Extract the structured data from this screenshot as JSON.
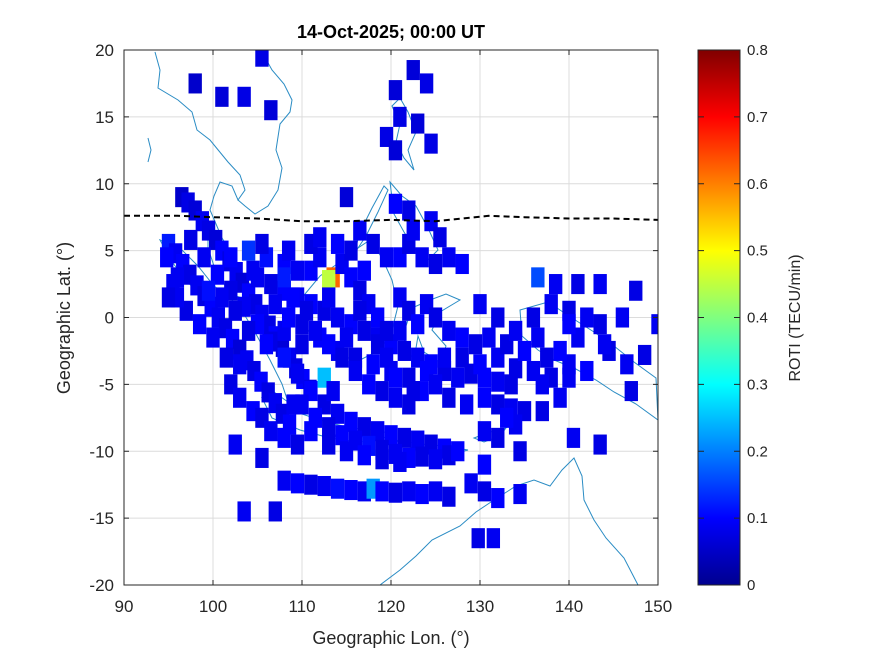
{
  "chart_data": {
    "type": "heatmap",
    "title": "14-Oct-2025; 00:00 UT",
    "xlabel": "Geographic Lon. (°)",
    "ylabel": "Geographic Lat. (°)",
    "xlim": [
      90,
      150
    ],
    "ylim": [
      -20,
      20
    ],
    "xticks": [
      "90",
      "100",
      "110",
      "120",
      "130",
      "140",
      "150"
    ],
    "yticks": [
      "20",
      "15",
      "10",
      "5",
      "0",
      "-5",
      "-10",
      "-15",
      "-20"
    ],
    "grid": true,
    "colorbar": {
      "label": "ROTI (TECU/min)",
      "range": [
        0,
        0.8
      ],
      "ticks": [
        "0.8",
        "0.7",
        "0.6",
        "0.5",
        "0.4",
        "0.3",
        "0.2",
        "0.1",
        "0"
      ],
      "colormap": "jet"
    },
    "colors": {
      "grid": "#dcdcdc",
      "coastline": "#2a8cc4",
      "equator_line": "#000000",
      "axes": "#262626"
    },
    "magnetic_equator": {
      "style": "dashed",
      "lon": [
        90,
        96,
        100,
        105,
        110,
        115,
        120,
        125,
        128,
        131,
        135,
        140,
        145,
        150
      ],
      "lat": [
        7.6,
        7.6,
        7.5,
        7.4,
        7.2,
        7.2,
        7.3,
        7.2,
        7.4,
        7.6,
        7.5,
        7.4,
        7.4,
        7.3
      ]
    },
    "roti_points": [
      [
        96.5,
        9.0,
        0.06
      ],
      [
        97.2,
        8.6,
        0.08
      ],
      [
        98.0,
        8.0,
        0.07
      ],
      [
        98.8,
        7.2,
        0.09
      ],
      [
        99.5,
        6.5,
        0.08
      ],
      [
        100.3,
        5.8,
        0.07
      ],
      [
        101.0,
        5.0,
        0.1
      ],
      [
        101.8,
        4.2,
        0.08
      ],
      [
        102.6,
        3.4,
        0.09
      ],
      [
        103.3,
        2.6,
        0.07
      ],
      [
        104.0,
        1.8,
        0.1
      ],
      [
        104.8,
        1.0,
        0.08
      ],
      [
        105.5,
        0.2,
        0.09
      ],
      [
        106.3,
        -0.6,
        0.08
      ],
      [
        107.0,
        -1.4,
        0.1
      ],
      [
        107.8,
        -2.2,
        0.07
      ],
      [
        108.6,
        -3.0,
        0.09
      ],
      [
        109.3,
        -3.8,
        0.08
      ],
      [
        110.1,
        -4.6,
        0.1
      ],
      [
        110.9,
        -5.4,
        0.08
      ],
      [
        95.0,
        5.5,
        0.12
      ],
      [
        95.8,
        4.8,
        0.09
      ],
      [
        96.6,
        4.0,
        0.1
      ],
      [
        97.4,
        3.2,
        0.08
      ],
      [
        98.2,
        2.4,
        0.09
      ],
      [
        99.0,
        1.6,
        0.08
      ],
      [
        99.8,
        0.8,
        0.1
      ],
      [
        100.6,
        0.0,
        0.09
      ],
      [
        101.4,
        -0.8,
        0.08
      ],
      [
        102.2,
        -1.6,
        0.1
      ],
      [
        103.0,
        -2.4,
        0.07
      ],
      [
        103.8,
        -3.2,
        0.09
      ],
      [
        104.6,
        -4.0,
        0.08
      ],
      [
        105.4,
        -4.8,
        0.1
      ],
      [
        106.2,
        -5.6,
        0.08
      ],
      [
        107.0,
        -6.4,
        0.09
      ],
      [
        107.8,
        -7.2,
        0.08
      ],
      [
        108.6,
        -8.0,
        0.1
      ],
      [
        97.5,
        5.8,
        0.08
      ],
      [
        99.0,
        4.5,
        0.09
      ],
      [
        100.5,
        3.2,
        0.1
      ],
      [
        102.0,
        2.0,
        0.08
      ],
      [
        103.5,
        0.8,
        0.09
      ],
      [
        105.0,
        -0.5,
        0.1
      ],
      [
        106.5,
        -1.8,
        0.08
      ],
      [
        108.0,
        -3.0,
        0.11
      ],
      [
        109.5,
        -4.2,
        0.09
      ],
      [
        111.0,
        -5.5,
        0.1
      ],
      [
        112.5,
        -6.5,
        0.08
      ],
      [
        114.0,
        -7.2,
        0.09
      ],
      [
        115.5,
        -7.8,
        0.1
      ],
      [
        117.0,
        -8.2,
        0.08
      ],
      [
        118.5,
        -8.5,
        0.09
      ],
      [
        120.0,
        -8.8,
        0.1
      ],
      [
        121.5,
        -9.0,
        0.08
      ],
      [
        123.0,
        -9.2,
        0.09
      ],
      [
        124.5,
        -9.5,
        0.08
      ],
      [
        126.0,
        -9.8,
        0.1
      ],
      [
        110.0,
        -6.5,
        0.09
      ],
      [
        111.5,
        -7.5,
        0.1
      ],
      [
        113.0,
        -8.2,
        0.08
      ],
      [
        114.5,
        -8.8,
        0.1
      ],
      [
        116.0,
        -9.2,
        0.09
      ],
      [
        117.5,
        -9.6,
        0.11
      ],
      [
        119.0,
        -9.9,
        0.08
      ],
      [
        120.5,
        -10.2,
        0.09
      ],
      [
        122.0,
        -10.5,
        0.1
      ],
      [
        123.5,
        -10.4,
        0.08
      ],
      [
        125.0,
        -10.6,
        0.09
      ],
      [
        126.5,
        -10.3,
        0.08
      ],
      [
        127.5,
        -10.0,
        0.1
      ],
      [
        108.0,
        -12.2,
        0.09
      ],
      [
        109.5,
        -12.4,
        0.1
      ],
      [
        111.0,
        -12.5,
        0.08
      ],
      [
        112.5,
        -12.6,
        0.09
      ],
      [
        114.0,
        -12.8,
        0.11
      ],
      [
        115.5,
        -12.9,
        0.1
      ],
      [
        117.0,
        -13.0,
        0.09
      ],
      [
        118.0,
        -12.8,
        0.22
      ],
      [
        119.0,
        -13.0,
        0.1
      ],
      [
        120.5,
        -13.1,
        0.08
      ],
      [
        122.0,
        -13.0,
        0.09
      ],
      [
        123.5,
        -13.2,
        0.1
      ],
      [
        125.0,
        -13.0,
        0.09
      ],
      [
        126.5,
        -13.4,
        0.08
      ],
      [
        129.0,
        -12.4,
        0.09
      ],
      [
        130.5,
        -13.0,
        0.08
      ],
      [
        132.0,
        -13.5,
        0.1
      ],
      [
        134.5,
        -13.2,
        0.09
      ],
      [
        129.8,
        -16.5,
        0.08
      ],
      [
        131.5,
        -16.5,
        0.09
      ],
      [
        105.0,
        3.0,
        0.09
      ],
      [
        106.5,
        2.5,
        0.08
      ],
      [
        108.0,
        2.0,
        0.1
      ],
      [
        109.5,
        1.5,
        0.09
      ],
      [
        111.0,
        1.0,
        0.1
      ],
      [
        112.5,
        0.5,
        0.08
      ],
      [
        114.0,
        0.0,
        0.09
      ],
      [
        115.5,
        -0.5,
        0.1
      ],
      [
        117.0,
        -1.0,
        0.08
      ],
      [
        118.5,
        -1.5,
        0.09
      ],
      [
        120.0,
        -2.0,
        0.1
      ],
      [
        121.5,
        -2.5,
        0.08
      ],
      [
        123.0,
        -3.0,
        0.09
      ],
      [
        124.5,
        -3.5,
        0.1
      ],
      [
        126.0,
        -4.0,
        0.08
      ],
      [
        127.5,
        -4.5,
        0.09
      ],
      [
        129.0,
        -4.2,
        0.08
      ],
      [
        130.5,
        -4.5,
        0.1
      ],
      [
        132.0,
        -4.8,
        0.09
      ],
      [
        133.5,
        -5.0,
        0.08
      ],
      [
        104.0,
        -1.0,
        0.08
      ],
      [
        106.0,
        -2.0,
        0.1
      ],
      [
        108.0,
        -1.0,
        0.09
      ],
      [
        110.0,
        -2.0,
        0.08
      ],
      [
        112.0,
        -1.5,
        0.1
      ],
      [
        114.0,
        -2.5,
        0.09
      ],
      [
        116.0,
        -3.0,
        0.08
      ],
      [
        118.0,
        -3.5,
        0.1
      ],
      [
        120.0,
        -4.0,
        0.09
      ],
      [
        122.0,
        -4.5,
        0.08
      ],
      [
        124.0,
        -4.0,
        0.1
      ],
      [
        126.0,
        -3.0,
        0.09
      ],
      [
        128.0,
        -3.0,
        0.08
      ],
      [
        130.0,
        -3.5,
        0.1
      ],
      [
        132.0,
        -3.0,
        0.09
      ],
      [
        134.0,
        -3.8,
        0.08
      ],
      [
        136.0,
        -4.0,
        0.09
      ],
      [
        138.0,
        -4.5,
        0.08
      ],
      [
        140.0,
        -3.5,
        0.09
      ],
      [
        142.0,
        -4.0,
        0.1
      ],
      [
        111.0,
        3.5,
        0.1
      ],
      [
        112.0,
        4.5,
        0.09
      ],
      [
        113.5,
        3.0,
        0.62
      ],
      [
        113.0,
        2.8,
        0.45
      ],
      [
        114.5,
        4.0,
        0.09
      ],
      [
        115.5,
        3.0,
        0.1
      ],
      [
        116.5,
        2.0,
        0.08
      ],
      [
        117.5,
        1.0,
        0.09
      ],
      [
        118.5,
        0.0,
        0.1
      ],
      [
        119.5,
        -1.0,
        0.08
      ],
      [
        121.0,
        1.5,
        0.09
      ],
      [
        122.0,
        0.5,
        0.08
      ],
      [
        123.0,
        -0.5,
        0.1
      ],
      [
        124.0,
        1.0,
        0.09
      ],
      [
        125.0,
        0.0,
        0.08
      ],
      [
        126.5,
        -1.0,
        0.09
      ],
      [
        128.0,
        -1.5,
        0.1
      ],
      [
        129.5,
        -2.0,
        0.08
      ],
      [
        131.0,
        -1.5,
        0.09
      ],
      [
        133.0,
        -2.0,
        0.08
      ],
      [
        107.0,
        1.0,
        0.09
      ],
      [
        108.5,
        0.0,
        0.1
      ],
      [
        110.0,
        -0.5,
        0.08
      ],
      [
        111.5,
        -1.0,
        0.09
      ],
      [
        113.0,
        -2.0,
        0.1
      ],
      [
        114.5,
        -3.0,
        0.08
      ],
      [
        116.0,
        -4.0,
        0.09
      ],
      [
        117.5,
        -5.0,
        0.1
      ],
      [
        119.0,
        -5.5,
        0.08
      ],
      [
        120.5,
        -6.0,
        0.09
      ],
      [
        122.0,
        -6.5,
        0.08
      ],
      [
        123.5,
        -5.5,
        0.1
      ],
      [
        125.0,
        -5.0,
        0.09
      ],
      [
        126.5,
        -6.0,
        0.08
      ],
      [
        128.5,
        -6.5,
        0.09
      ],
      [
        130.5,
        -6.0,
        0.1
      ],
      [
        132.0,
        -6.5,
        0.08
      ],
      [
        133.5,
        -6.8,
        0.09
      ],
      [
        135.0,
        -7.0,
        0.08
      ],
      [
        137.0,
        -5.0,
        0.09
      ],
      [
        109.0,
        -6.5,
        0.09
      ],
      [
        111.0,
        -8.5,
        0.1
      ],
      [
        113.0,
        -9.5,
        0.08
      ],
      [
        115.0,
        -10.0,
        0.09
      ],
      [
        117.0,
        -10.3,
        0.1
      ],
      [
        119.0,
        -10.6,
        0.08
      ],
      [
        121.0,
        -10.8,
        0.09
      ],
      [
        118.5,
        -2.0,
        0.08
      ],
      [
        119.5,
        -3.0,
        0.09
      ],
      [
        120.5,
        -4.5,
        0.1
      ],
      [
        122.5,
        -5.5,
        0.08
      ],
      [
        121.0,
        -1.0,
        0.09
      ],
      [
        112.5,
        -4.5,
        0.25
      ],
      [
        115.0,
        -1.5,
        0.09
      ],
      [
        116.5,
        0.5,
        0.08
      ],
      [
        117.0,
        3.5,
        0.1
      ],
      [
        113.0,
        1.5,
        0.09
      ],
      [
        110.5,
        0.5,
        0.08
      ],
      [
        109.0,
        1.5,
        0.1
      ],
      [
        113.5,
        -5.5,
        0.09
      ],
      [
        108.0,
        4.0,
        0.1
      ],
      [
        109.5,
        3.5,
        0.09
      ],
      [
        111.0,
        5.5,
        0.08
      ],
      [
        112.0,
        6.0,
        0.09
      ],
      [
        114.0,
        5.5,
        0.1
      ],
      [
        115.5,
        5.0,
        0.08
      ],
      [
        116.5,
        6.5,
        0.09
      ],
      [
        118.0,
        5.5,
        0.08
      ],
      [
        119.5,
        4.5,
        0.09
      ],
      [
        121.0,
        4.5,
        0.1
      ],
      [
        122.0,
        5.5,
        0.08
      ],
      [
        123.5,
        4.5,
        0.09
      ],
      [
        125.0,
        4.0,
        0.08
      ],
      [
        126.5,
        4.5,
        0.09
      ],
      [
        128.0,
        4.0,
        0.1
      ],
      [
        130.0,
        1.0,
        0.09
      ],
      [
        132.0,
        0.0,
        0.08
      ],
      [
        134.0,
        -1.0,
        0.09
      ],
      [
        135.0,
        -2.5,
        0.1
      ],
      [
        136.5,
        -1.5,
        0.09
      ],
      [
        124.5,
        7.2,
        0.09
      ],
      [
        125.5,
        6.0,
        0.08
      ],
      [
        120.5,
        8.5,
        0.1
      ],
      [
        122.5,
        6.5,
        0.09
      ],
      [
        102.0,
        -5.0,
        0.08
      ],
      [
        103.0,
        -6.0,
        0.09
      ],
      [
        104.5,
        -7.0,
        0.1
      ],
      [
        105.5,
        -7.5,
        0.08
      ],
      [
        106.5,
        -8.5,
        0.09
      ],
      [
        108.0,
        -9.0,
        0.1
      ],
      [
        109.5,
        -9.5,
        0.08
      ],
      [
        103.0,
        -3.5,
        0.09
      ],
      [
        101.5,
        -3.0,
        0.08
      ],
      [
        100.0,
        -1.5,
        0.09
      ],
      [
        98.5,
        -0.5,
        0.1
      ],
      [
        97.0,
        0.5,
        0.08
      ],
      [
        96.0,
        1.5,
        0.09
      ],
      [
        99.5,
        2.0,
        0.11
      ],
      [
        101.0,
        1.5,
        0.09
      ],
      [
        102.5,
        0.5,
        0.08
      ],
      [
        138.0,
        1.0,
        0.09
      ],
      [
        140.0,
        0.5,
        0.08
      ],
      [
        142.0,
        0.0,
        0.09
      ],
      [
        143.5,
        -0.5,
        0.08
      ],
      [
        141.0,
        -1.5,
        0.09
      ],
      [
        139.0,
        -2.5,
        0.1
      ],
      [
        137.5,
        -3.0,
        0.08
      ],
      [
        140.0,
        -4.5,
        0.09
      ],
      [
        144.5,
        -2.5,
        0.08
      ],
      [
        146.5,
        -3.5,
        0.09
      ],
      [
        148.5,
        -2.8,
        0.08
      ],
      [
        150.0,
        -0.5,
        0.09
      ],
      [
        98.0,
        17.5,
        0.06
      ],
      [
        101.0,
        16.5,
        0.07
      ],
      [
        103.5,
        16.5,
        0.08
      ],
      [
        106.5,
        15.5,
        0.07
      ],
      [
        105.5,
        19.5,
        0.08
      ],
      [
        122.5,
        18.5,
        0.07
      ],
      [
        124.0,
        17.5,
        0.08
      ],
      [
        120.5,
        17.0,
        0.07
      ],
      [
        121.0,
        15.0,
        0.08
      ],
      [
        123.0,
        14.5,
        0.07
      ],
      [
        119.5,
        13.5,
        0.08
      ],
      [
        120.5,
        12.5,
        0.07
      ],
      [
        124.5,
        13.0,
        0.08
      ],
      [
        115.0,
        9.0,
        0.07
      ],
      [
        122.0,
        8.0,
        0.08
      ],
      [
        136.5,
        3.0,
        0.16
      ],
      [
        138.5,
        2.5,
        0.09
      ],
      [
        141.0,
        2.5,
        0.08
      ],
      [
        143.5,
        2.5,
        0.09
      ],
      [
        147.5,
        2.0,
        0.08
      ],
      [
        146.0,
        0.0,
        0.09
      ],
      [
        140.0,
        -0.5,
        0.1
      ],
      [
        136.0,
        0.0,
        0.08
      ],
      [
        144.0,
        -2.0,
        0.09
      ],
      [
        147.0,
        -5.5,
        0.08
      ],
      [
        139.0,
        -6.0,
        0.09
      ],
      [
        137.0,
        -7.0,
        0.08
      ],
      [
        134.0,
        -8.0,
        0.09
      ],
      [
        133.0,
        -7.5,
        0.1
      ],
      [
        132.0,
        -9.0,
        0.08
      ],
      [
        130.5,
        -8.5,
        0.09
      ],
      [
        134.5,
        -10.0,
        0.08
      ],
      [
        130.5,
        -11.0,
        0.1
      ],
      [
        140.5,
        -9.0,
        0.09
      ],
      [
        143.5,
        -9.5,
        0.08
      ],
      [
        102.5,
        -9.5,
        0.09
      ],
      [
        105.5,
        -10.5,
        0.08
      ],
      [
        103.5,
        -14.5,
        0.09
      ],
      [
        107.0,
        -14.5,
        0.08
      ],
      [
        108.0,
        3.0,
        0.12
      ],
      [
        108.5,
        5.0,
        0.09
      ],
      [
        102.0,
        4.5,
        0.1
      ],
      [
        104.5,
        3.5,
        0.09
      ],
      [
        106.0,
        4.5,
        0.11
      ],
      [
        104.0,
        5.0,
        0.14
      ],
      [
        105.5,
        5.5,
        0.08
      ],
      [
        95.5,
        2.5,
        0.09
      ],
      [
        95.0,
        1.5,
        0.08
      ],
      [
        94.8,
        4.5,
        0.1
      ],
      [
        96.0,
        3.0,
        0.09
      ]
    ]
  }
}
